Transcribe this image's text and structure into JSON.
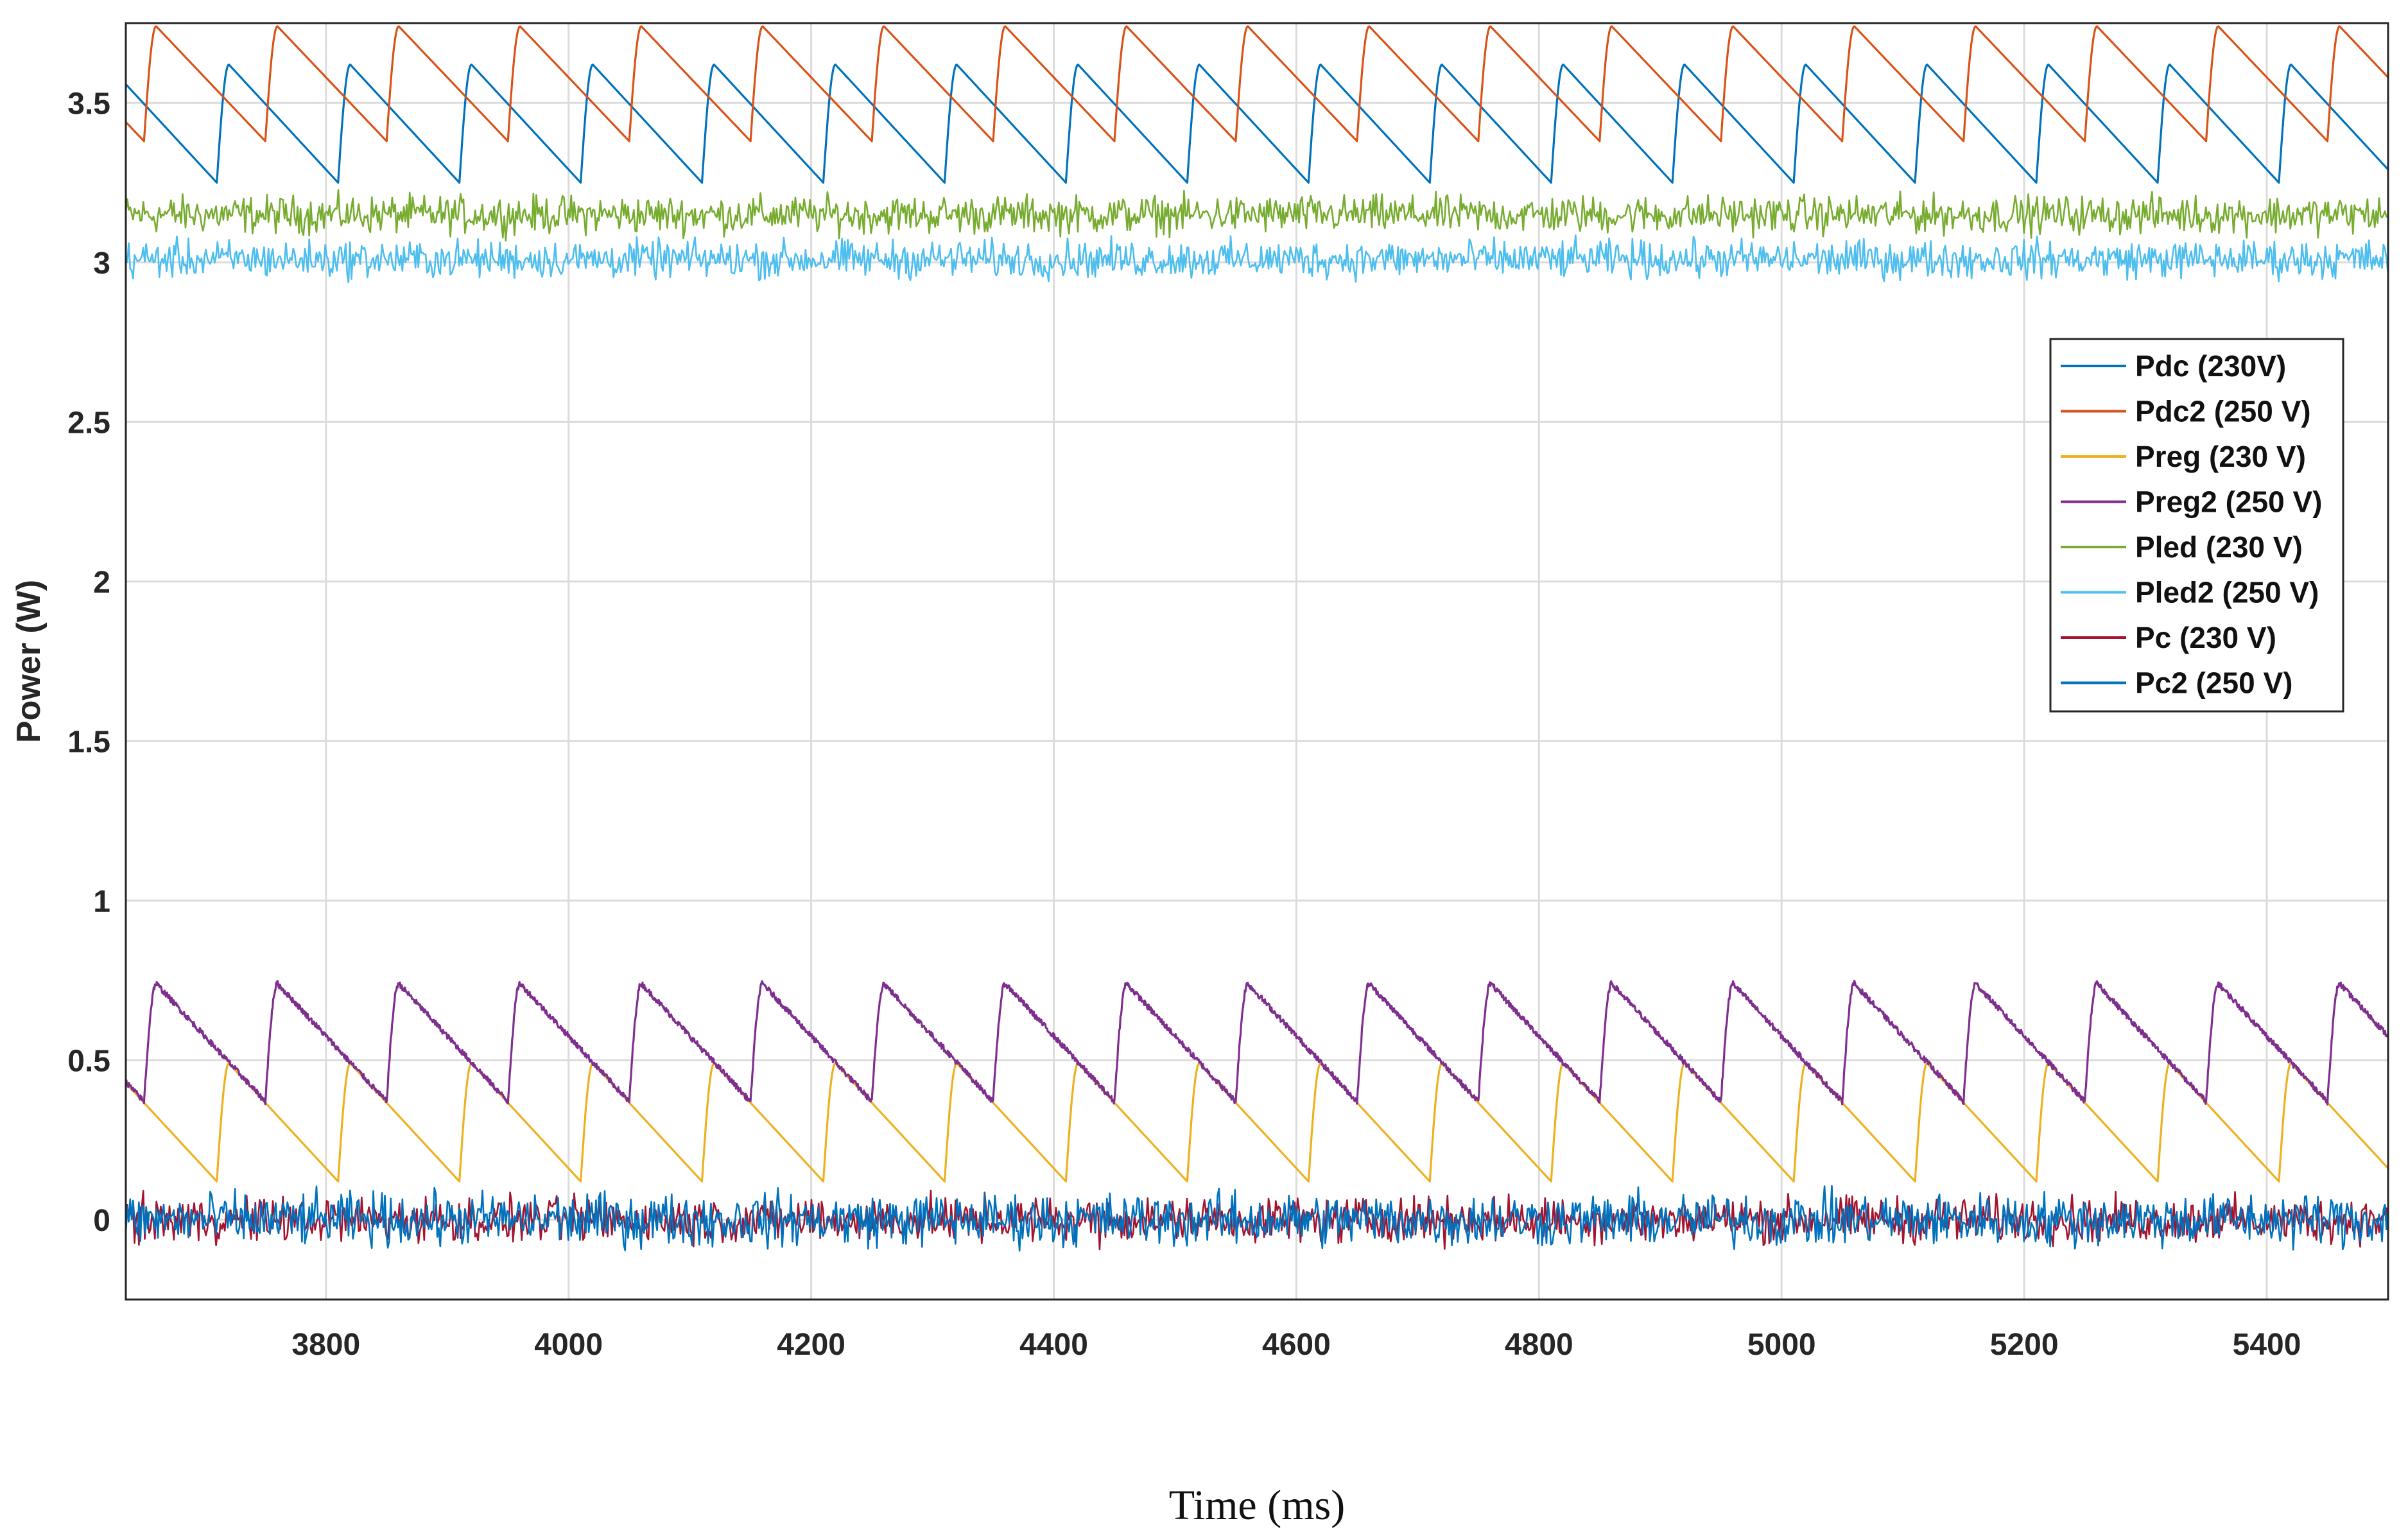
{
  "chart_data": {
    "type": "line",
    "title": "",
    "xlabel": "Time (ms)",
    "ylabel": "Power (W)",
    "xlim": [
      3635,
      5500
    ],
    "ylim": [
      -0.25,
      3.75
    ],
    "xticks": [
      3800,
      4000,
      4200,
      4400,
      4600,
      4800,
      5000,
      5200,
      5400
    ],
    "yticks": [
      0,
      0.5,
      1,
      1.5,
      2,
      2.5,
      3,
      3.5
    ],
    "ytick_labels": [
      "0",
      "0.5",
      "1",
      "1.5",
      "2",
      "2.5",
      "3",
      "3.5"
    ],
    "grid": true,
    "legend_position": "right",
    "period_ms": 100,
    "series": [
      {
        "name": "Pdc (230V)",
        "color": "#0072BD",
        "kind": "sawtooth",
        "min": 3.25,
        "max": 3.62,
        "phase_ms": 3710
      },
      {
        "name": "Pdc2 (250 V)",
        "color": "#D95319",
        "kind": "sawtooth",
        "min": 3.38,
        "max": 3.74,
        "phase_ms": 3750
      },
      {
        "name": "Preg (230 V)",
        "color": "#EDB120",
        "kind": "sawtooth",
        "min": 0.12,
        "max": 0.49,
        "phase_ms": 3710
      },
      {
        "name": "Preg2 (250 V)",
        "color": "#7E2F8E",
        "kind": "sawtooth",
        "min": 0.37,
        "max": 0.74,
        "phase_ms": 3750
      },
      {
        "name": "Pled (230 V)",
        "color": "#77AC30",
        "kind": "noise",
        "mean": 3.15,
        "amplitude": 0.05
      },
      {
        "name": "Pled2 (250 V)",
        "color": "#4DBEEE",
        "kind": "noise",
        "mean": 3.01,
        "amplitude": 0.05
      },
      {
        "name": "Pc (230 V)",
        "color": "#A2142F",
        "kind": "noise",
        "mean": 0.0,
        "amplitude": 0.06
      },
      {
        "name": "Pc2 (250 V)",
        "color": "#0072BD",
        "kind": "noise",
        "mean": 0.0,
        "amplitude": 0.07
      }
    ]
  }
}
